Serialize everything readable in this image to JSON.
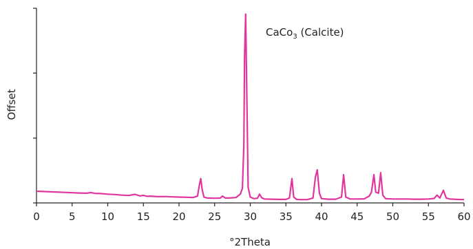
{
  "chart_data": {
    "type": "line",
    "title": "",
    "xlabel": "°2Theta",
    "ylabel": "Offset",
    "xlim": [
      0,
      60
    ],
    "ylim": [
      0,
      100
    ],
    "x_ticks": [
      0,
      5,
      10,
      15,
      20,
      25,
      30,
      35,
      40,
      45,
      50,
      55,
      60
    ],
    "y_ticks": [
      0,
      33.3,
      66.7,
      100
    ],
    "grid": false,
    "annotation": {
      "main": "CaCo",
      "sub": "3",
      "suffix": " (Calcite)"
    },
    "series": [
      {
        "color": "#e0359e",
        "points": [
          [
            0,
            6.0
          ],
          [
            2,
            5.7
          ],
          [
            4,
            5.4
          ],
          [
            6,
            5.1
          ],
          [
            7,
            5.0
          ],
          [
            7.6,
            5.3
          ],
          [
            8.2,
            4.9
          ],
          [
            9,
            4.8
          ],
          [
            10,
            4.5
          ],
          [
            11,
            4.3
          ],
          [
            12,
            4.0
          ],
          [
            13,
            3.8
          ],
          [
            13.8,
            4.4
          ],
          [
            14.5,
            3.6
          ],
          [
            15,
            3.9
          ],
          [
            15.5,
            3.4
          ],
          [
            16,
            3.5
          ],
          [
            17,
            3.2
          ],
          [
            18,
            3.3
          ],
          [
            19,
            3.1
          ],
          [
            20,
            3.0
          ],
          [
            21,
            2.9
          ],
          [
            22,
            2.8
          ],
          [
            22.6,
            3.5
          ],
          [
            22.85,
            9.0
          ],
          [
            23.05,
            12.5
          ],
          [
            23.25,
            7.0
          ],
          [
            23.5,
            3.0
          ],
          [
            24,
            2.5
          ],
          [
            25,
            2.4
          ],
          [
            25.8,
            2.5
          ],
          [
            26.1,
            3.5
          ],
          [
            26.5,
            2.5
          ],
          [
            27,
            2.5
          ],
          [
            28,
            2.8
          ],
          [
            28.6,
            4.5
          ],
          [
            28.9,
            7.5
          ],
          [
            29.1,
            30.0
          ],
          [
            29.2,
            75.0
          ],
          [
            29.35,
            97.0
          ],
          [
            29.5,
            60.0
          ],
          [
            29.7,
            8.0
          ],
          [
            30,
            3.0
          ],
          [
            30.5,
            2.2
          ],
          [
            31,
            2.4
          ],
          [
            31.3,
            4.5
          ],
          [
            31.6,
            2.6
          ],
          [
            32,
            2.0
          ],
          [
            33,
            1.9
          ],
          [
            34,
            1.8
          ],
          [
            35,
            1.8
          ],
          [
            35.5,
            2.5
          ],
          [
            35.85,
            12.5
          ],
          [
            36.1,
            3.0
          ],
          [
            36.5,
            1.8
          ],
          [
            37,
            1.7
          ],
          [
            38,
            1.7
          ],
          [
            38.8,
            2.5
          ],
          [
            39.15,
            13.5
          ],
          [
            39.4,
            17.0
          ],
          [
            39.7,
            5.0
          ],
          [
            40,
            2.2
          ],
          [
            41,
            1.9
          ],
          [
            42,
            1.9
          ],
          [
            42.8,
            3.0
          ],
          [
            43.1,
            14.5
          ],
          [
            43.4,
            3.0
          ],
          [
            44,
            2.0
          ],
          [
            45,
            2.0
          ],
          [
            46,
            2.1
          ],
          [
            46.7,
            3.5
          ],
          [
            47,
            5.5
          ],
          [
            47.35,
            14.5
          ],
          [
            47.6,
            5.5
          ],
          [
            48,
            5.0
          ],
          [
            48.3,
            15.5
          ],
          [
            48.6,
            4.0
          ],
          [
            49,
            2.2
          ],
          [
            50,
            2.0
          ],
          [
            51,
            2.0
          ],
          [
            52,
            2.0
          ],
          [
            53,
            1.9
          ],
          [
            54,
            1.9
          ],
          [
            55,
            2.0
          ],
          [
            55.8,
            2.3
          ],
          [
            56.2,
            4.0
          ],
          [
            56.6,
            2.5
          ],
          [
            57.1,
            6.5
          ],
          [
            57.5,
            2.5
          ],
          [
            58,
            2.0
          ],
          [
            59,
            1.8
          ],
          [
            60,
            1.7
          ]
        ]
      }
    ]
  }
}
